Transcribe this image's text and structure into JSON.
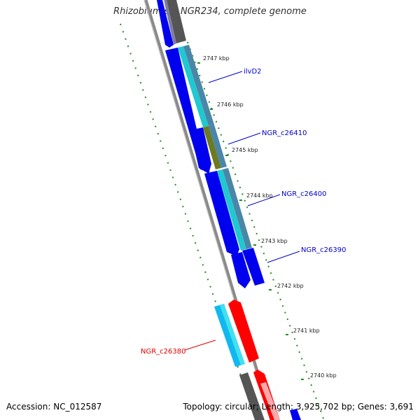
{
  "title": "Rhizobium sp. NGR234, complete genome",
  "footer": {
    "accession": "Accession: NC_012587",
    "summary": "Topology: circular; Length: 3,925,702 bp; Genes: 3,691"
  },
  "ticks": [
    "2747 kbp",
    "2746 kbp",
    "2745 kbp",
    "2744 kbp",
    "2743 kbp",
    "2742 kbp",
    "2741 kbp",
    "2740 kbp"
  ],
  "genes": [
    {
      "name": "ilvD2",
      "color": "#0000cc"
    },
    {
      "name": "NGR_c26410",
      "color": "#0000cc"
    },
    {
      "name": "NGR_c26400",
      "color": "#0000cc"
    },
    {
      "name": "NGR_c26390",
      "color": "#0000cc"
    },
    {
      "name": "NGR_c26380",
      "color": "#dd0000"
    }
  ],
  "colors": {
    "forward_gene": "#0000ee",
    "reverse_gene": "#ff0000",
    "forward_protein": "#20c8d0",
    "reverse_protein": "#10b8f0",
    "backbone": "#8a8a8a",
    "gc_dots": "#228b22"
  }
}
